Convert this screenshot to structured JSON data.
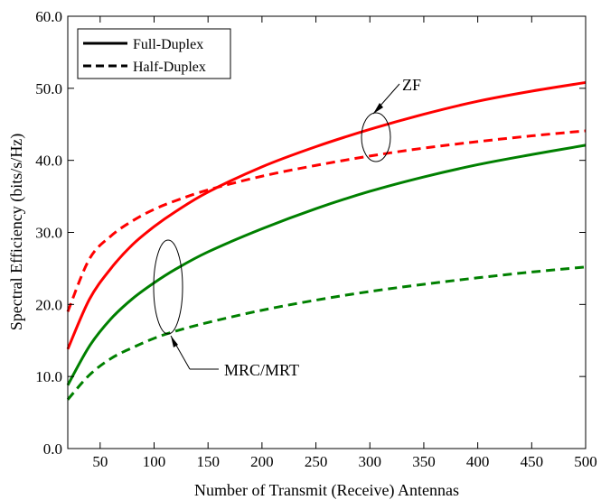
{
  "chart_data": {
    "type": "line",
    "xlabel": "Number of Transmit (Receive) Antennas",
    "ylabel": "Spectral Efficiency (bits/s/Hz)",
    "xlim": [
      20,
      500
    ],
    "ylim": [
      0,
      60
    ],
    "xticks": [
      50,
      100,
      150,
      200,
      250,
      300,
      350,
      400,
      450,
      500
    ],
    "xtick_labels": [
      "50",
      "100",
      "150",
      "200",
      "250",
      "300",
      "350",
      "400",
      "450",
      "500"
    ],
    "yticks": [
      0,
      10,
      20,
      30,
      40,
      50,
      60
    ],
    "ytick_labels": [
      "0.0",
      "10.0",
      "20.0",
      "30.0",
      "40.0",
      "50.0",
      "60.0"
    ],
    "legend": {
      "position": "top-left",
      "entries": [
        {
          "label": "Full-Duplex",
          "style": "solid"
        },
        {
          "label": "Half-Duplex",
          "style": "dashed"
        }
      ]
    },
    "annotations": [
      {
        "text": "ZF",
        "target": "zf"
      },
      {
        "text": "MRC/MRT",
        "target": "mrc"
      }
    ],
    "x": [
      20,
      40,
      60,
      80,
      100,
      120,
      150,
      200,
      250,
      300,
      350,
      400,
      450,
      500
    ],
    "series": [
      {
        "group": "zf",
        "style": "solid",
        "color": "#ff0000",
        "values": [
          13.8,
          20.7,
          25.0,
          28.3,
          30.8,
          32.9,
          35.6,
          39.1,
          41.9,
          44.3,
          46.4,
          48.2,
          49.6,
          50.8
        ]
      },
      {
        "group": "zf",
        "style": "dashed",
        "color": "#ff0000",
        "values": [
          19.0,
          26.3,
          29.5,
          31.6,
          33.2,
          34.4,
          35.9,
          37.8,
          39.3,
          40.6,
          41.7,
          42.6,
          43.4,
          44.1
        ]
      },
      {
        "group": "mrc",
        "style": "solid",
        "color": "#008000",
        "values": [
          8.8,
          14.2,
          18.0,
          20.8,
          23.0,
          24.9,
          27.3,
          30.5,
          33.3,
          35.7,
          37.7,
          39.4,
          40.8,
          42.1
        ]
      },
      {
        "group": "mrc",
        "style": "dashed",
        "color": "#008000",
        "values": [
          6.8,
          10.2,
          12.5,
          14.0,
          15.3,
          16.3,
          17.5,
          19.2,
          20.6,
          21.8,
          22.8,
          23.7,
          24.5,
          25.2
        ]
      }
    ]
  }
}
